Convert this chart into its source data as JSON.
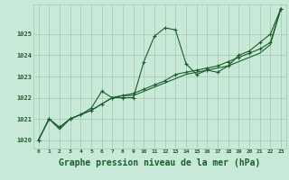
{
  "background_color": "#c8e8d8",
  "grid_color": "#a0c8b0",
  "line_color": "#1a5e2a",
  "xlabel": "Graphe pression niveau de la mer (hPa)",
  "xlabel_fontsize": 7,
  "ylim": [
    1019.6,
    1026.4
  ],
  "xlim": [
    -0.5,
    23.5
  ],
  "yticks": [
    1020,
    1021,
    1022,
    1023,
    1024,
    1025
  ],
  "xticks": [
    0,
    1,
    2,
    3,
    4,
    5,
    6,
    7,
    8,
    9,
    10,
    11,
    12,
    13,
    14,
    15,
    16,
    17,
    18,
    19,
    20,
    21,
    22,
    23
  ],
  "series1": [
    1020.0,
    1021.0,
    1020.6,
    1021.0,
    1021.2,
    1021.5,
    1022.3,
    1022.0,
    1022.0,
    1022.0,
    1023.7,
    1024.9,
    1025.3,
    1025.2,
    1023.6,
    1023.1,
    1023.3,
    1023.2,
    1023.5,
    1024.0,
    1024.2,
    1024.6,
    1025.0,
    1026.2
  ],
  "series2": [
    1020.0,
    1021.0,
    1020.6,
    1021.0,
    1021.2,
    1021.4,
    1021.7,
    1022.0,
    1022.1,
    1022.2,
    1022.4,
    1022.6,
    1022.8,
    1023.1,
    1023.2,
    1023.3,
    1023.4,
    1023.5,
    1023.7,
    1023.9,
    1024.1,
    1024.3,
    1024.6,
    1026.2
  ],
  "series3": [
    1020.0,
    1021.0,
    1020.5,
    1021.0,
    1021.2,
    1021.4,
    1021.7,
    1022.0,
    1022.1,
    1022.1,
    1022.3,
    1022.5,
    1022.7,
    1022.9,
    1023.1,
    1023.2,
    1023.3,
    1023.4,
    1023.5,
    1023.7,
    1023.9,
    1024.1,
    1024.5,
    1026.2
  ]
}
